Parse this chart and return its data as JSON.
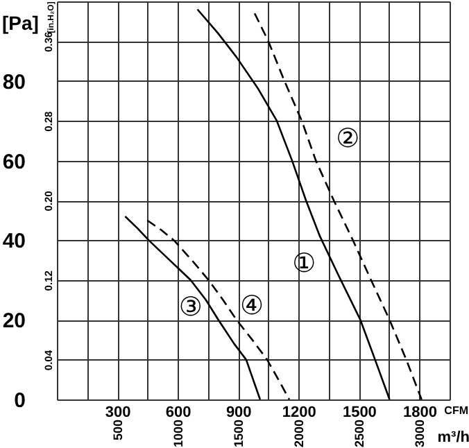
{
  "chart_data": {
    "type": "line",
    "xlabel": "CFM",
    "ylabel": "[Pa]",
    "y2label": "[in.H₂O]",
    "x2label": "m³/h",
    "xlim": [
      0,
      1950
    ],
    "xticks": [
      {
        "value": 0,
        "label": null
      },
      {
        "value": 150,
        "label": null
      },
      300,
      {
        "value": 450,
        "label": null
      },
      600,
      {
        "value": 750,
        "label": null
      },
      900,
      {
        "value": 1050,
        "label": null
      },
      1200,
      {
        "value": 1350,
        "label": null
      },
      1500,
      {
        "value": 1650,
        "label": null
      },
      1800,
      {
        "value": 1950,
        "label": null
      }
    ],
    "ylim": [
      0,
      100
    ],
    "yticks": [
      0,
      {
        "value": 10,
        "label": null
      },
      20,
      {
        "value": 30,
        "label": null
      },
      40,
      {
        "value": 50,
        "label": null
      },
      60,
      {
        "value": 70,
        "label": null
      },
      80,
      {
        "value": 90,
        "label": null
      },
      {
        "value": 100,
        "label": null
      }
    ],
    "y2lim": [
      0,
      0.4
    ],
    "y2ticks": [
      0.04,
      0.12,
      {
        "value": 0.2,
        "label": "0.20"
      },
      0.28,
      0.36
    ],
    "x2lim": [
      0,
      3250
    ],
    "x2ticks": [
      500,
      1000,
      1500,
      2000,
      2500,
      3000
    ],
    "grid": true,
    "marker": "none",
    "series": [
      {
        "name": "①",
        "color": "#000000",
        "line_style": "solid",
        "x": [
          698,
          800,
          892,
          1000,
          1092,
          1168,
          1237,
          1306,
          1400,
          1507,
          1580,
          1652
        ],
        "values": [
          98,
          92,
          86,
          78,
          70,
          60,
          50,
          41,
          31,
          20,
          10,
          0
        ]
      },
      {
        "name": "②",
        "color": "#000000",
        "line_style": "dashed",
        "x": [
          982,
          1050,
          1130,
          1216,
          1286,
          1375,
          1470,
          1560,
          1652,
          1735,
          1811
        ],
        "values": [
          97,
          90,
          80,
          70,
          60,
          50,
          40,
          30,
          20,
          10,
          0
        ]
      },
      {
        "name": "③",
        "color": "#000000",
        "line_style": "solid",
        "x": [
          339,
          400,
          456,
          560,
          664,
          740,
          802,
          880,
          940,
          1009
        ],
        "values": [
          46,
          43,
          40,
          35,
          30,
          25,
          20,
          14,
          10,
          0
        ]
      },
      {
        "name": "④",
        "color": "#000000",
        "line_style": "dashed",
        "x": [
          449,
          520,
          581,
          670,
          753,
          825,
          892,
          970,
          1044,
          1100,
          1154
        ],
        "values": [
          45,
          42.5,
          40,
          35,
          30,
          25,
          20,
          15,
          10,
          5,
          0
        ]
      }
    ]
  }
}
